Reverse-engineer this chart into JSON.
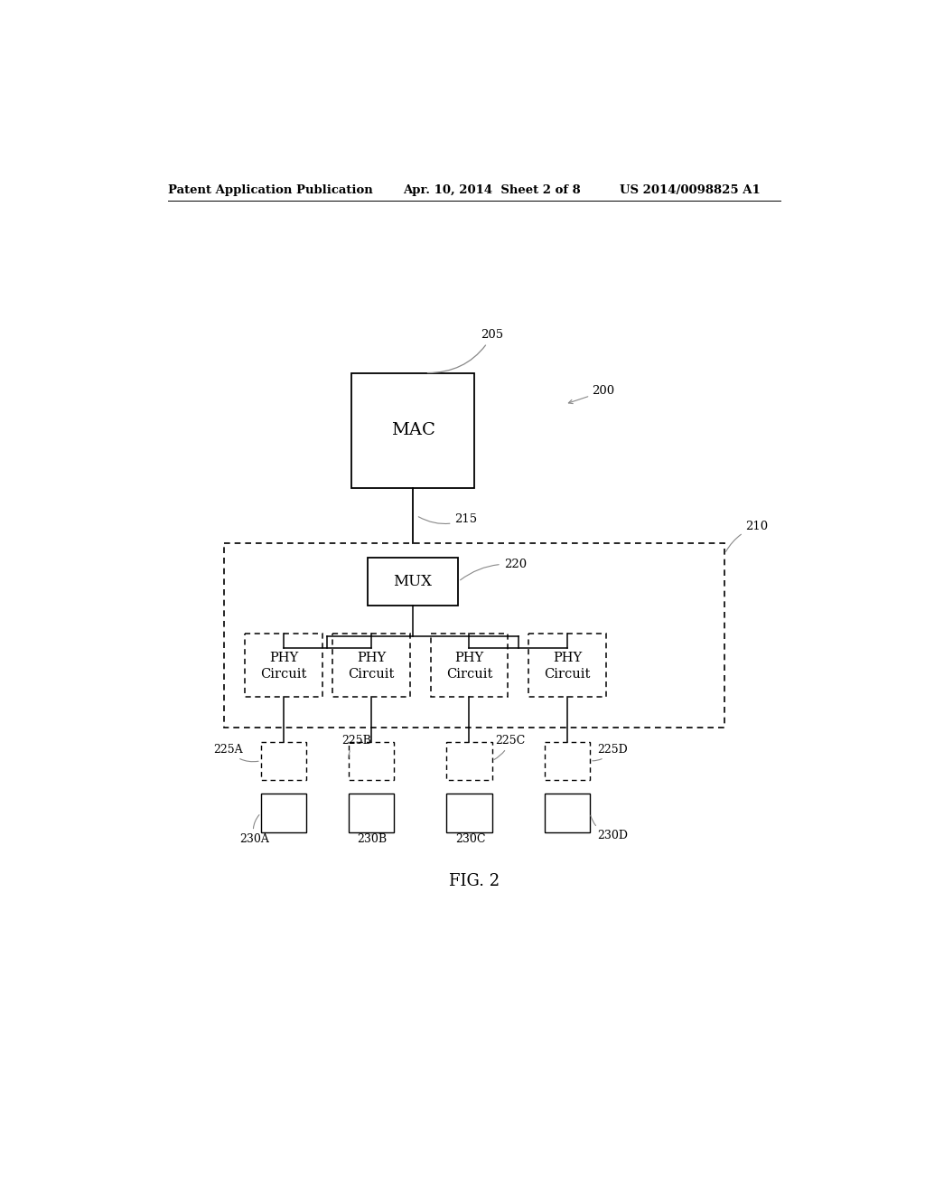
{
  "bg_color": "#ffffff",
  "header_left": "Patent Application Publication",
  "header_mid": "Apr. 10, 2014  Sheet 2 of 8",
  "header_right": "US 2014/0098825 A1",
  "caption": "FIG. 2",
  "mac_label": "MAC",
  "mux_label": "MUX",
  "label_205": "205",
  "label_200": "200",
  "label_215": "215",
  "label_210": "210",
  "label_220": "220",
  "label_225A": "225A",
  "label_225B": "225B",
  "label_225C": "225C",
  "label_225D": "225D",
  "label_230A": "230A",
  "label_230B": "230B",
  "label_230C": "230C",
  "label_230D": "230D"
}
